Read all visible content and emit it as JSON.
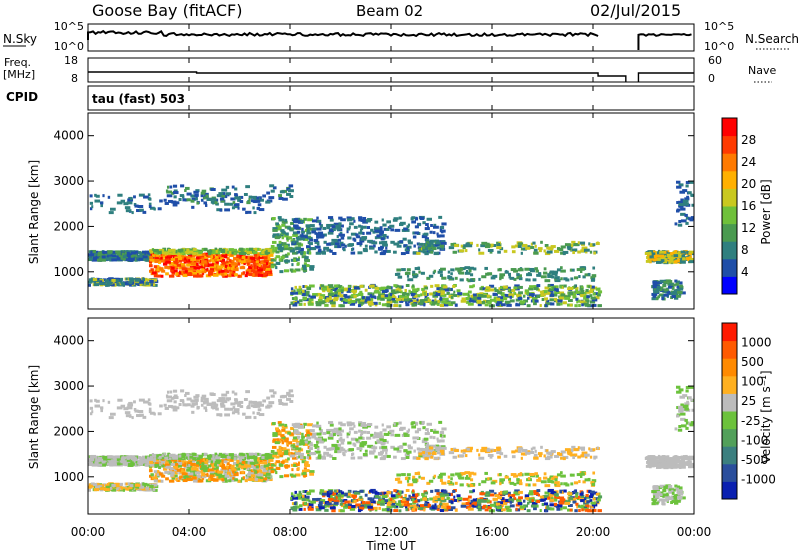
{
  "header": {
    "station": "Goose Bay (fitACF)",
    "beam": "Beam 02",
    "date": "02/Jul/2015"
  },
  "strip1": {
    "left_label": "N.Sky",
    "right_label": "N.Search",
    "left_ticks": [
      "10^5",
      "10^0"
    ],
    "right_ticks": [
      "10^5",
      "10^0"
    ]
  },
  "strip2": {
    "left_label_top": "Freq.",
    "left_label_bottom": "[MHz]",
    "right_label": "Nave",
    "left_ticks": [
      "18",
      "8"
    ],
    "right_ticks": [
      "60",
      "0"
    ]
  },
  "cpid": {
    "label": "CPID",
    "value": "tau (fast) 503"
  },
  "time_axis": {
    "label": "Time UT",
    "ticks": [
      "00:00",
      "04:00",
      "08:00",
      "12:00",
      "16:00",
      "20:00",
      "00:00"
    ]
  },
  "chart_data": [
    {
      "type": "heatmap",
      "ylabel": "Slant Range [km]",
      "yticks": [
        "4000",
        "3000",
        "2000",
        "1000"
      ],
      "colorbar": {
        "label": "Power [dB]",
        "ticks": [
          "28",
          "24",
          "20",
          "16",
          "12",
          "8",
          "4"
        ],
        "colors": [
          "#0000ff",
          "#1f4ea8",
          "#2f7f7f",
          "#4a9a50",
          "#6fc03a",
          "#c9c820",
          "#ffb000",
          "#ff7a00",
          "#ff3a00",
          "#ff0000"
        ]
      },
      "x_hours": [
        0,
        24
      ],
      "y_km": [
        180,
        4500
      ]
    },
    {
      "type": "heatmap",
      "ylabel": "Slant Range [km]",
      "yticks": [
        "4000",
        "3000",
        "2000",
        "1000"
      ],
      "colorbar": {
        "label": "Velocity [m s⁻¹]",
        "ticks": [
          "1000",
          "500",
          "100",
          "25",
          "-25",
          "-100",
          "-500",
          "-1000"
        ],
        "colors": [
          "#0a20b0",
          "#2a4e9c",
          "#3b7f7f",
          "#52a05a",
          "#6cc23c",
          "#bcbcbc",
          "#ffb020",
          "#ff8a00",
          "#ff5a00",
          "#ff1a00"
        ]
      },
      "x_hours": [
        0,
        24
      ],
      "y_km": [
        180,
        4500
      ]
    }
  ]
}
